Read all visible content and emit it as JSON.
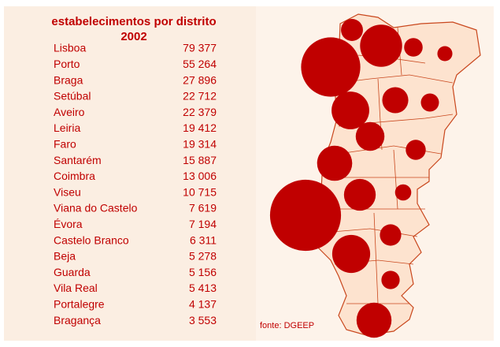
{
  "title": "estabelecimentos por distrito",
  "year": "2002",
  "source": "fonte: DGEEP",
  "rows": [
    {
      "name": "Lisboa",
      "value": 79377,
      "label": "79 377"
    },
    {
      "name": "Porto",
      "value": 55264,
      "label": "55 264"
    },
    {
      "name": "Braga",
      "value": 27896,
      "label": "27 896"
    },
    {
      "name": "Setúbal",
      "value": 22712,
      "label": "22 712"
    },
    {
      "name": "Aveiro",
      "value": 22379,
      "label": "22 379"
    },
    {
      "name": "Leiria",
      "value": 19412,
      "label": "19 412"
    },
    {
      "name": "Faro",
      "value": 19314,
      "label": "19 314"
    },
    {
      "name": "Santarém",
      "value": 15887,
      "label": "15 887"
    },
    {
      "name": "Coimbra",
      "value": 13006,
      "label": "13 006"
    },
    {
      "name": "Viseu",
      "value": 10715,
      "label": "10 715"
    },
    {
      "name": "Viana do Castelo",
      "value": 7619,
      "label": "7 619"
    },
    {
      "name": "Évora",
      "value": 7194,
      "label": "7 194"
    },
    {
      "name": "Castelo Branco",
      "value": 6311,
      "label": "6 311"
    },
    {
      "name": "Beja",
      "value": 5278,
      "label": "5 278"
    },
    {
      "name": "Guarda",
      "value": 5156,
      "label": "5 156"
    },
    {
      "name": "Vila Real",
      "value": 5413,
      "label": "5 413"
    },
    {
      "name": "Portalegre",
      "value": 4137,
      "label": "4 137"
    },
    {
      "name": "Bragança",
      "value": 3553,
      "label": "3 553"
    }
  ]
}
